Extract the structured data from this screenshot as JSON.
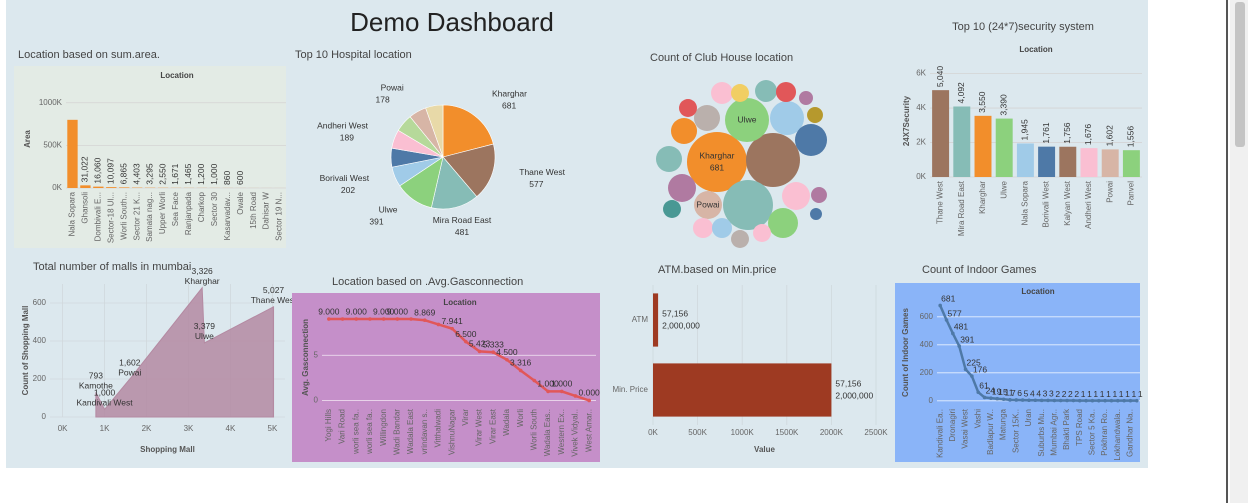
{
  "title": "Demo Dashboard",
  "chart_data": [
    {
      "type": "bar",
      "title": "Location based on sum.area.",
      "title_color": "#222222",
      "header": "Location",
      "header_color": "#5aa05a",
      "ylabel": "Area",
      "label_color": "#5aa05a",
      "color": "#f28e2b",
      "categories": [
        "Nala Sopara",
        "Ghansoli",
        "Dombivali E...",
        "Sector-18 Ul...",
        "Worli South...",
        "Sector 21 K...",
        "Samata nag...",
        "Upper Worli",
        "Sea Face",
        "Ranjanpada",
        "Charkop",
        "Sector 30",
        "Kasarvadav...",
        "Owale",
        "15th Road",
        "Dahisar W",
        "Sector 19 N..."
      ],
      "values": [
        800000,
        31022,
        16060,
        10097,
        6865,
        4403,
        3295,
        2550,
        1671,
        1465,
        1200,
        1000,
        860,
        600,
        450,
        350,
        250
      ],
      "value_labels": [
        null,
        "31,022",
        "16,060",
        "10,097",
        "6,865",
        "4,403",
        "3,295",
        "2,550",
        "1,671",
        "1,465",
        "1,200",
        "1,000",
        "860",
        "600",
        null,
        null,
        null
      ],
      "ylim": [
        0,
        1150000
      ],
      "yticks": [
        {
          "value": 0,
          "label": "0K"
        },
        {
          "value": 500000,
          "label": "500K"
        },
        {
          "value": 1000000,
          "label": "1000K"
        }
      ],
      "grid": true
    },
    {
      "type": "pie",
      "title": "Top 10 Hospital location",
      "title_color": "#d9739f",
      "categories": [
        "Kharghar",
        "Thane West",
        "Mira Road East",
        "Ulwe",
        "Borivali West",
        null,
        "Andheri West",
        null,
        "Powai",
        null
      ],
      "values": [
        681,
        577,
        481,
        391,
        202,
        190,
        189,
        180,
        178,
        176
      ],
      "colors": [
        "#f28e2b",
        "#9c755f",
        "#86bcb6",
        "#8cd17d",
        "#a0cbe8",
        "#4e79a7",
        "#fabfd2",
        "#b6d99a",
        "#d7b5a6",
        "#e8d9a8"
      ]
    },
    {
      "type": "bubble",
      "title": "Count of Club House location",
      "title_color": "#5aa05a",
      "categories": [
        "Kharghar",
        null,
        null,
        "Ulwe",
        null,
        null,
        "Powai",
        null,
        null,
        null,
        null,
        null,
        null,
        null,
        null,
        null,
        null,
        null,
        null,
        null,
        null,
        null,
        null,
        null,
        null,
        null,
        null
      ],
      "values": [
        681,
        551,
        472,
        366,
        219,
        194,
        148,
        148,
        128,
        128,
        170,
        148,
        61,
        91,
        91,
        76,
        37,
        48,
        48,
        128,
        61,
        76,
        76,
        61,
        61,
        61,
        27
      ],
      "value_labels": [
        "681",
        null,
        null,
        null,
        null,
        null,
        null,
        null,
        null,
        null,
        null,
        null,
        null,
        null,
        null,
        null,
        null,
        null,
        null,
        null,
        null,
        null,
        null,
        null,
        null,
        null,
        null
      ],
      "colors": [
        "#f28e2b",
        "#9c755f",
        "#86bcb6",
        "#8cd17d",
        "#a0cbe8",
        "#4e79a7",
        "#d7b5a6",
        "#b07aa1",
        "#f28e2b",
        "#bab0ac",
        "#8cd17d",
        "#fabfd2",
        "#e15759",
        "#fabfd2",
        "#86bcb6",
        "#e15759",
        "#b07aa1",
        "#b6992d",
        "#b07aa1",
        "#86bcb6",
        "#499894",
        "#fabfd2",
        "#a0cbe8",
        "#bab0ac",
        "#fabfd2",
        "#f1ce63",
        "#4e79a7"
      ]
    },
    {
      "type": "bar",
      "title": "Top 10 (24*7)security system",
      "title_color": "#f28e2b",
      "header": "Location",
      "header_color": "#444444",
      "ylabel": "24X7Security",
      "label_color": "#444444",
      "categories": [
        "Thane West",
        "Mira Road East",
        "Kharghar",
        "Ulwe",
        "Nala Sopara",
        "Borivali West",
        "Kalyan West",
        "Andheri West",
        "Powai",
        "Panvel"
      ],
      "values": [
        5040,
        4092,
        3550,
        3390,
        1945,
        1761,
        1756,
        1676,
        1602,
        1556
      ],
      "value_labels": [
        "5,040",
        "4,092",
        "3,550",
        "3,390",
        "1,945",
        "1,761",
        "1,756",
        "1,676",
        "1,602",
        "1,556"
      ],
      "colors": [
        "#9c755f",
        "#86bcb6",
        "#f28e2b",
        "#8cd17d",
        "#a0cbe8",
        "#4e79a7",
        "#9c755f",
        "#fabfd2",
        "#d7b5a6",
        "#8cd17d"
      ],
      "ylim": [
        0,
        6500
      ],
      "yticks": [
        {
          "value": 0,
          "label": "0K"
        },
        {
          "value": 2000,
          "label": "2K"
        },
        {
          "value": 4000,
          "label": "4K"
        },
        {
          "value": 6000,
          "label": "6K"
        }
      ],
      "grid": true
    },
    {
      "type": "area",
      "title": "Total number of malls in mumbai",
      "title_color": "#e0455a",
      "xlabel": "Shopping Mall",
      "ylabel": "Count of Shopping Mall",
      "label_color": "#b0924b",
      "color": "#b48aa2",
      "categories": [
        "Kamothe",
        "Kandivali West",
        "Powai",
        "Kharghar",
        "Ulwe",
        "Thane West"
      ],
      "x": [
        793,
        1000,
        1602,
        3326,
        3379,
        5027
      ],
      "x_labels": [
        "793",
        "1,000",
        "1,602",
        "3,326",
        "3,379",
        "5,027"
      ],
      "values": [
        130,
        40,
        200,
        680,
        390,
        580
      ],
      "xlim": [
        -300,
        5300
      ],
      "ylim": [
        0,
        700
      ],
      "xticks": [
        {
          "value": 0,
          "label": "0K"
        },
        {
          "value": 1000,
          "label": "1K"
        },
        {
          "value": 2000,
          "label": "2K"
        },
        {
          "value": 3000,
          "label": "3K"
        },
        {
          "value": 4000,
          "label": "4K"
        },
        {
          "value": 5000,
          "label": "5K"
        }
      ],
      "yticks": [
        0,
        200,
        400,
        600
      ],
      "grid": true
    },
    {
      "type": "line",
      "title": "Location based on .Avg.Gasconnection",
      "title_color": "#e0455a",
      "header": "Location",
      "header_color": "#444444",
      "ylabel": "Avg. Gasconnection",
      "label_color": "#444444",
      "color": "#e15759",
      "background": "#c58fc9",
      "categories": [
        "Yogi Hills",
        "Vari Road",
        "worli sea fa..",
        "worli sea fa..",
        "Willingdon",
        "Wadi Bandar",
        "Wadala East",
        "vrindavan s..",
        "Vitthalwadi",
        "VishnuNagar",
        "Virar",
        "Virar West",
        "Virar East",
        "Wadala",
        "Worli",
        "Worli South",
        "Wadala Eas..",
        "Western Ex..",
        "Vivek Vidyal..",
        "West Amar.."
      ],
      "values": [
        9,
        9,
        9,
        9,
        9,
        9,
        9,
        8.869,
        8.4,
        7.941,
        6.5,
        5.423,
        5.333,
        4.5,
        3.316,
        2.2,
        1,
        1,
        0.5,
        0
      ],
      "value_labels": [
        "9.000",
        null,
        "9.000",
        null,
        "9.000",
        "9.000",
        null,
        "8.869",
        null,
        "7.941",
        "6.500",
        "5.423",
        "5.333",
        "4.500",
        "3.316",
        null,
        "1.000",
        "1.000",
        null,
        "0.000"
      ],
      "ylim": [
        -0.5,
        10
      ],
      "yticks": [
        0,
        5
      ],
      "grid": true
    },
    {
      "type": "hbar",
      "title": "ATM.based on Min.price",
      "title_color": "#e0455a",
      "xlabel": "Value",
      "label_color": "#444444",
      "color": "#9e3a22",
      "categories": [
        "ATM",
        "Min. Price"
      ],
      "values": [
        57156,
        2000000
      ],
      "annotations": [
        [
          "57,156",
          "2,000,000"
        ],
        [
          "57,156",
          "2,000,000"
        ]
      ],
      "xlim": [
        0,
        2500000
      ],
      "xticks": [
        {
          "value": 0,
          "label": "0K"
        },
        {
          "value": 500000,
          "label": "500K"
        },
        {
          "value": 1000000,
          "label": "1000K"
        },
        {
          "value": 1500000,
          "label": "1500K"
        },
        {
          "value": 2000000,
          "label": "2000K"
        },
        {
          "value": 2500000,
          "label": "2500K"
        }
      ],
      "grid": true
    },
    {
      "type": "line",
      "title": "Count of Indoor Games",
      "title_color": "#e0455a",
      "header": "Location",
      "header_color": "#444444",
      "ylabel": "Count of Indoor Games",
      "label_color": "#444444",
      "color": "#4e79a7",
      "background": "#8ab4f8",
      "categories": [
        "Kandivali Ea..",
        null,
        "Dronagiri",
        null,
        "Vasai West",
        null,
        "Vashi",
        null,
        "Badlapur W..",
        null,
        "Matunga",
        null,
        "Sector 15K..",
        null,
        "Uran",
        null,
        "Suburbs Mu..",
        null,
        "Mumbai Agr..",
        null,
        "Bhakti Park",
        null,
        "TPS Road",
        null,
        "Sector 5 Ka..",
        null,
        "Pokhran Ro..",
        null,
        "Lokhandwala..",
        null,
        "Gandhar Na..",
        null
      ],
      "values": [
        681,
        577,
        481,
        391,
        225,
        176,
        61,
        24,
        19,
        15,
        11,
        7,
        6,
        5,
        4,
        4,
        3,
        3,
        2,
        2,
        2,
        2,
        1,
        1,
        1,
        1,
        1,
        1,
        1,
        1,
        1,
        1
      ],
      "ylim": [
        -30,
        720
      ],
      "yticks": [
        0,
        200,
        400,
        600
      ],
      "grid": true
    }
  ]
}
